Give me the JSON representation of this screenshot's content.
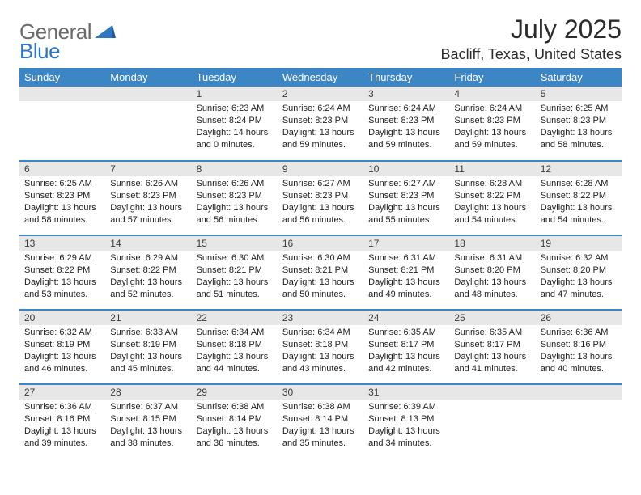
{
  "logo": {
    "general": "General",
    "blue": "Blue"
  },
  "title": "July 2025",
  "location": "Bacliff, Texas, United States",
  "colors": {
    "header_bg": "#3d86c6",
    "header_fg": "#ffffff",
    "daynum_bg": "#e7e7e7",
    "rule": "#3d86c6",
    "logo_gray": "#6b6b6b",
    "logo_blue": "#2f78bf"
  },
  "weekdays": [
    "Sunday",
    "Monday",
    "Tuesday",
    "Wednesday",
    "Thursday",
    "Friday",
    "Saturday"
  ],
  "weeks": [
    [
      null,
      null,
      {
        "n": "1",
        "sr": "Sunrise: 6:23 AM",
        "ss": "Sunset: 8:24 PM",
        "dl": "Daylight: 14 hours and 0 minutes."
      },
      {
        "n": "2",
        "sr": "Sunrise: 6:24 AM",
        "ss": "Sunset: 8:23 PM",
        "dl": "Daylight: 13 hours and 59 minutes."
      },
      {
        "n": "3",
        "sr": "Sunrise: 6:24 AM",
        "ss": "Sunset: 8:23 PM",
        "dl": "Daylight: 13 hours and 59 minutes."
      },
      {
        "n": "4",
        "sr": "Sunrise: 6:24 AM",
        "ss": "Sunset: 8:23 PM",
        "dl": "Daylight: 13 hours and 59 minutes."
      },
      {
        "n": "5",
        "sr": "Sunrise: 6:25 AM",
        "ss": "Sunset: 8:23 PM",
        "dl": "Daylight: 13 hours and 58 minutes."
      }
    ],
    [
      {
        "n": "6",
        "sr": "Sunrise: 6:25 AM",
        "ss": "Sunset: 8:23 PM",
        "dl": "Daylight: 13 hours and 58 minutes."
      },
      {
        "n": "7",
        "sr": "Sunrise: 6:26 AM",
        "ss": "Sunset: 8:23 PM",
        "dl": "Daylight: 13 hours and 57 minutes."
      },
      {
        "n": "8",
        "sr": "Sunrise: 6:26 AM",
        "ss": "Sunset: 8:23 PM",
        "dl": "Daylight: 13 hours and 56 minutes."
      },
      {
        "n": "9",
        "sr": "Sunrise: 6:27 AM",
        "ss": "Sunset: 8:23 PM",
        "dl": "Daylight: 13 hours and 56 minutes."
      },
      {
        "n": "10",
        "sr": "Sunrise: 6:27 AM",
        "ss": "Sunset: 8:23 PM",
        "dl": "Daylight: 13 hours and 55 minutes."
      },
      {
        "n": "11",
        "sr": "Sunrise: 6:28 AM",
        "ss": "Sunset: 8:22 PM",
        "dl": "Daylight: 13 hours and 54 minutes."
      },
      {
        "n": "12",
        "sr": "Sunrise: 6:28 AM",
        "ss": "Sunset: 8:22 PM",
        "dl": "Daylight: 13 hours and 54 minutes."
      }
    ],
    [
      {
        "n": "13",
        "sr": "Sunrise: 6:29 AM",
        "ss": "Sunset: 8:22 PM",
        "dl": "Daylight: 13 hours and 53 minutes."
      },
      {
        "n": "14",
        "sr": "Sunrise: 6:29 AM",
        "ss": "Sunset: 8:22 PM",
        "dl": "Daylight: 13 hours and 52 minutes."
      },
      {
        "n": "15",
        "sr": "Sunrise: 6:30 AM",
        "ss": "Sunset: 8:21 PM",
        "dl": "Daylight: 13 hours and 51 minutes."
      },
      {
        "n": "16",
        "sr": "Sunrise: 6:30 AM",
        "ss": "Sunset: 8:21 PM",
        "dl": "Daylight: 13 hours and 50 minutes."
      },
      {
        "n": "17",
        "sr": "Sunrise: 6:31 AM",
        "ss": "Sunset: 8:21 PM",
        "dl": "Daylight: 13 hours and 49 minutes."
      },
      {
        "n": "18",
        "sr": "Sunrise: 6:31 AM",
        "ss": "Sunset: 8:20 PM",
        "dl": "Daylight: 13 hours and 48 minutes."
      },
      {
        "n": "19",
        "sr": "Sunrise: 6:32 AM",
        "ss": "Sunset: 8:20 PM",
        "dl": "Daylight: 13 hours and 47 minutes."
      }
    ],
    [
      {
        "n": "20",
        "sr": "Sunrise: 6:32 AM",
        "ss": "Sunset: 8:19 PM",
        "dl": "Daylight: 13 hours and 46 minutes."
      },
      {
        "n": "21",
        "sr": "Sunrise: 6:33 AM",
        "ss": "Sunset: 8:19 PM",
        "dl": "Daylight: 13 hours and 45 minutes."
      },
      {
        "n": "22",
        "sr": "Sunrise: 6:34 AM",
        "ss": "Sunset: 8:18 PM",
        "dl": "Daylight: 13 hours and 44 minutes."
      },
      {
        "n": "23",
        "sr": "Sunrise: 6:34 AM",
        "ss": "Sunset: 8:18 PM",
        "dl": "Daylight: 13 hours and 43 minutes."
      },
      {
        "n": "24",
        "sr": "Sunrise: 6:35 AM",
        "ss": "Sunset: 8:17 PM",
        "dl": "Daylight: 13 hours and 42 minutes."
      },
      {
        "n": "25",
        "sr": "Sunrise: 6:35 AM",
        "ss": "Sunset: 8:17 PM",
        "dl": "Daylight: 13 hours and 41 minutes."
      },
      {
        "n": "26",
        "sr": "Sunrise: 6:36 AM",
        "ss": "Sunset: 8:16 PM",
        "dl": "Daylight: 13 hours and 40 minutes."
      }
    ],
    [
      {
        "n": "27",
        "sr": "Sunrise: 6:36 AM",
        "ss": "Sunset: 8:16 PM",
        "dl": "Daylight: 13 hours and 39 minutes."
      },
      {
        "n": "28",
        "sr": "Sunrise: 6:37 AM",
        "ss": "Sunset: 8:15 PM",
        "dl": "Daylight: 13 hours and 38 minutes."
      },
      {
        "n": "29",
        "sr": "Sunrise: 6:38 AM",
        "ss": "Sunset: 8:14 PM",
        "dl": "Daylight: 13 hours and 36 minutes."
      },
      {
        "n": "30",
        "sr": "Sunrise: 6:38 AM",
        "ss": "Sunset: 8:14 PM",
        "dl": "Daylight: 13 hours and 35 minutes."
      },
      {
        "n": "31",
        "sr": "Sunrise: 6:39 AM",
        "ss": "Sunset: 8:13 PM",
        "dl": "Daylight: 13 hours and 34 minutes."
      },
      null,
      null
    ]
  ]
}
